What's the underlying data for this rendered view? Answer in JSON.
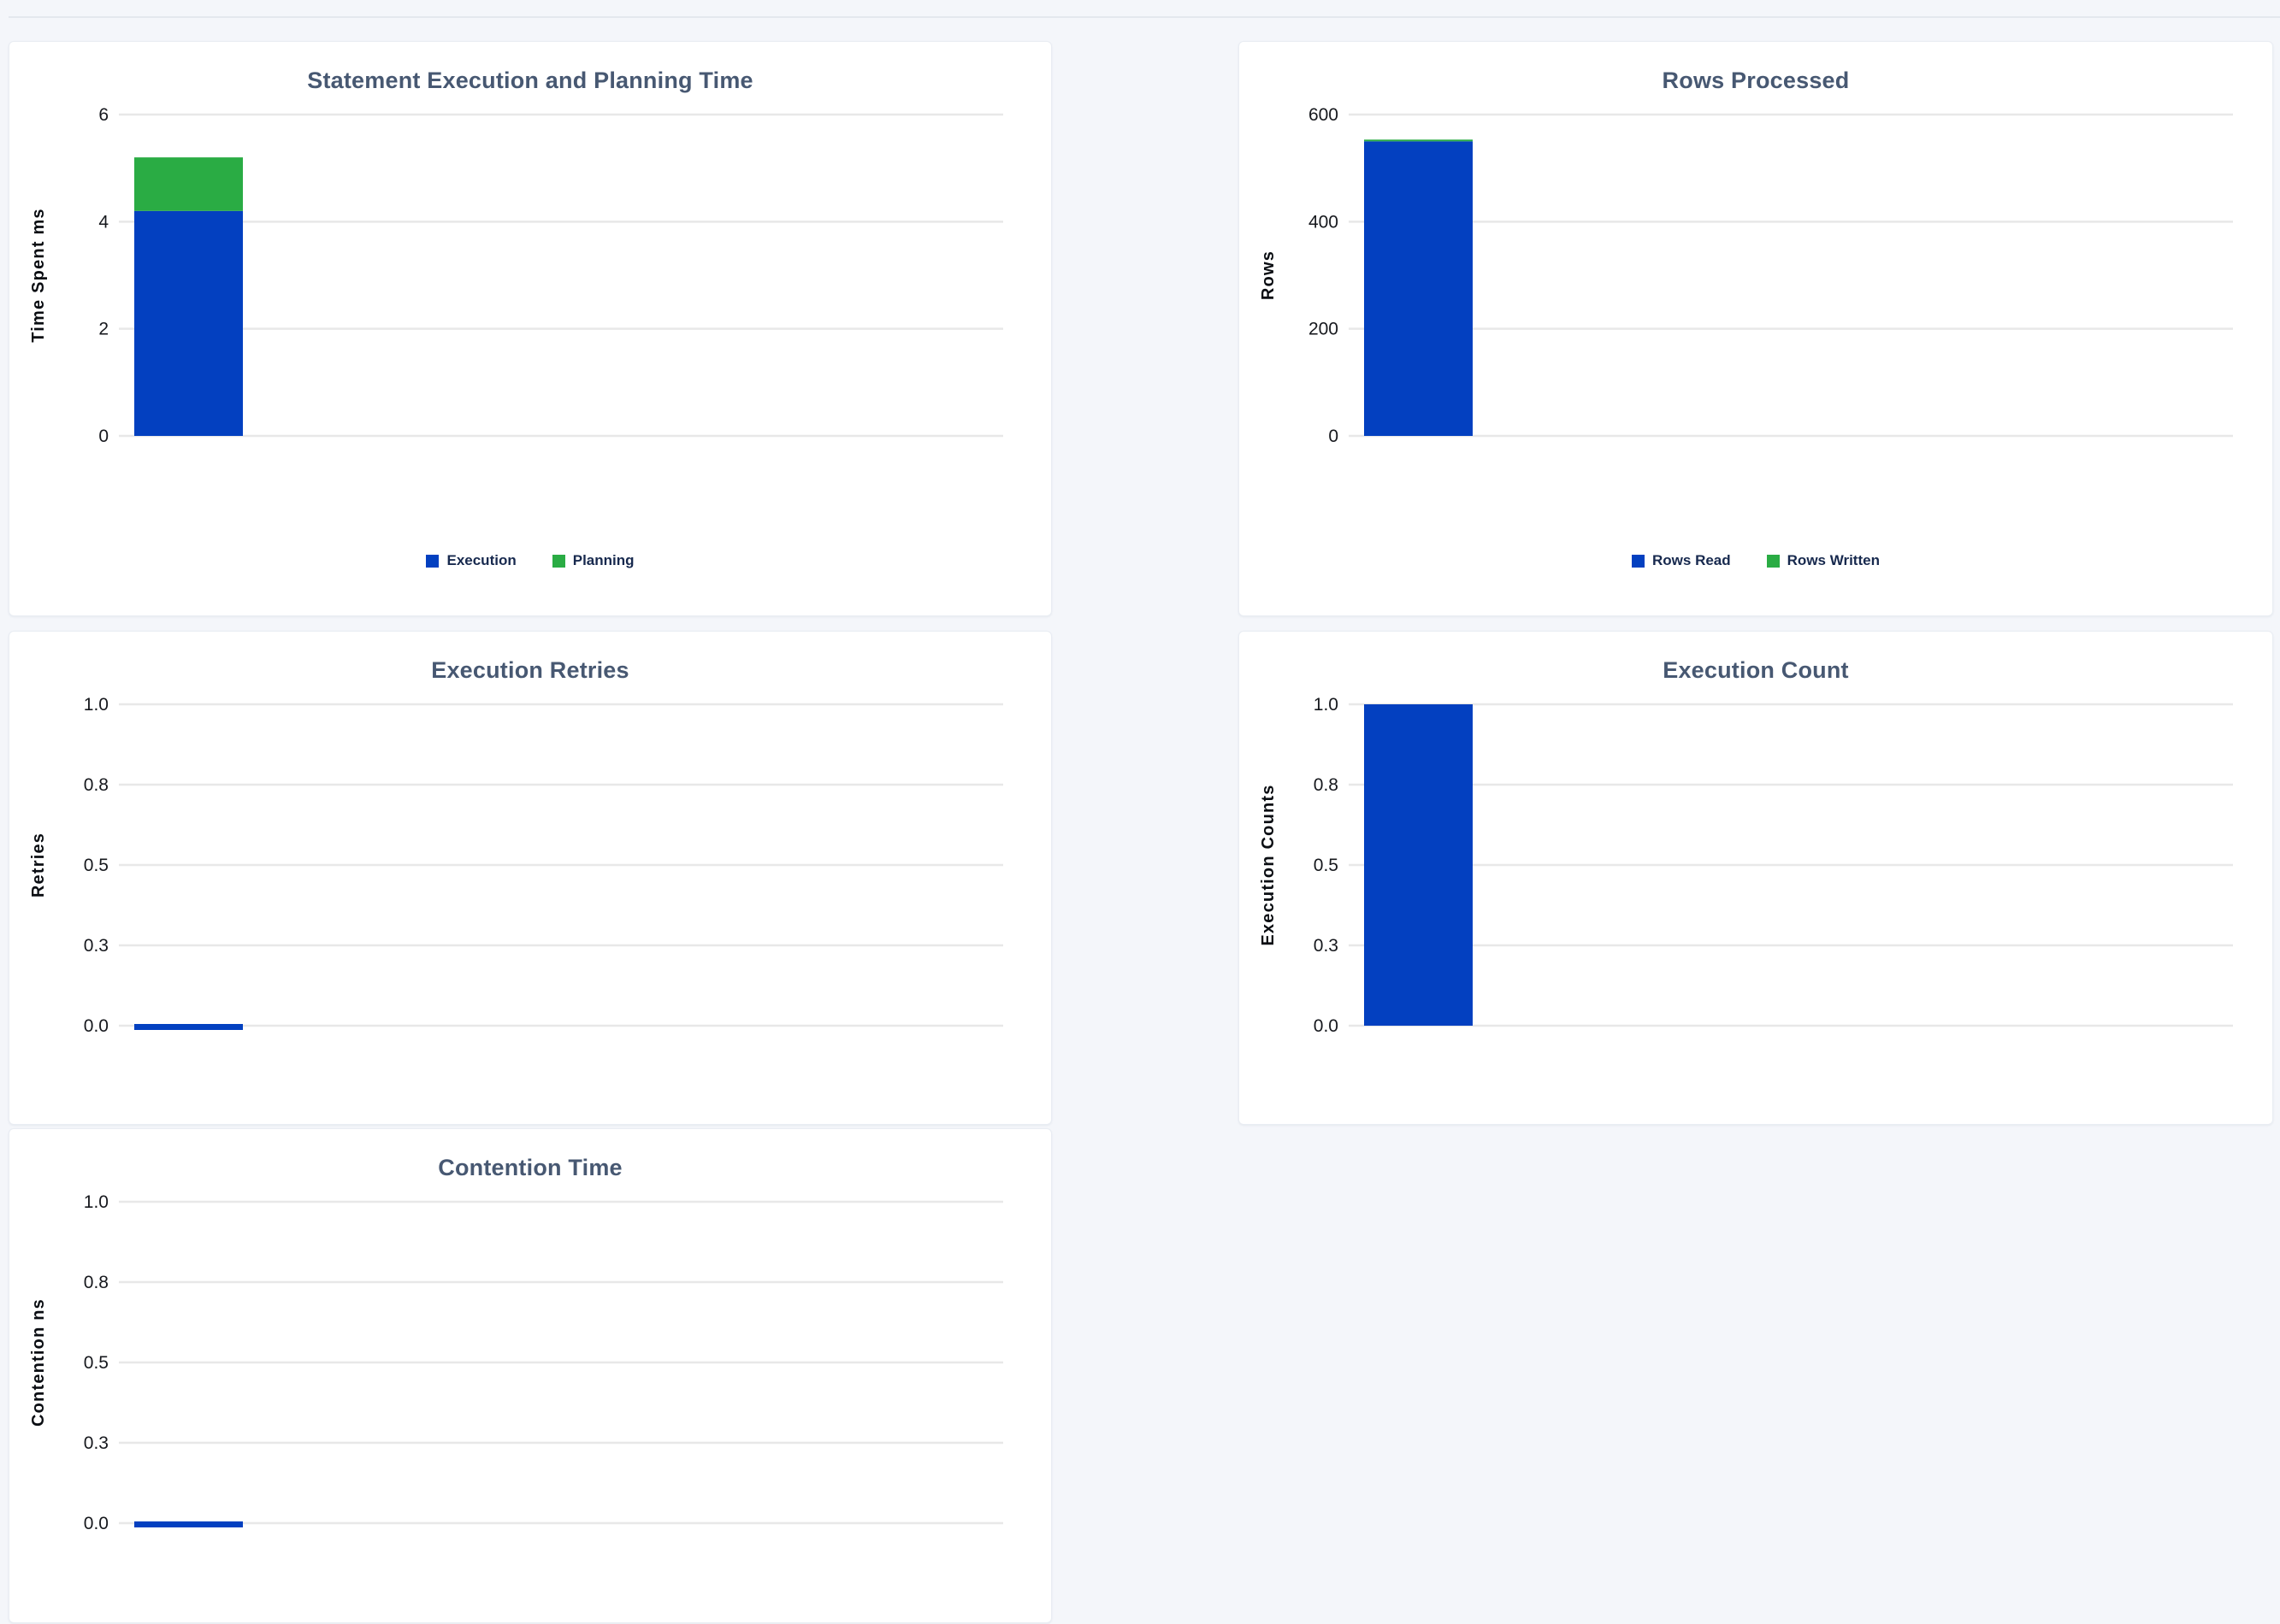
{
  "page": {
    "background": "#f4f6fa"
  },
  "colors": {
    "blue": "#0340c0",
    "green": "#2aac44",
    "title": "#475872",
    "tick": "#16181d",
    "grid": "#e8e8e8",
    "axis_label": "#0b0e13",
    "legend_text": "#17294e",
    "card_bg": "#ffffff",
    "card_border": "#e9edf3",
    "divider": "#e4e8ee"
  },
  "chart_data": [
    {
      "id": "statement-execution-planning-time",
      "type": "bar",
      "title": "Statement Execution and Planning Time",
      "ylabel": "Time Spent ms",
      "ylim": [
        0,
        6
      ],
      "yticks": [
        0,
        2,
        4,
        6
      ],
      "ytick_labels": [
        "0",
        "2",
        "4",
        "6"
      ],
      "grid": true,
      "legend_position": "bottom-center",
      "series": [
        {
          "name": "Execution",
          "color": "blue",
          "value": 4.2
        },
        {
          "name": "Planning",
          "color": "green",
          "value": 1.0
        }
      ],
      "legend": [
        {
          "label": "Execution",
          "color": "blue"
        },
        {
          "label": "Planning",
          "color": "green"
        }
      ]
    },
    {
      "id": "rows-processed",
      "type": "bar",
      "title": "Rows Processed",
      "ylabel": "Rows",
      "ylim": [
        0,
        600
      ],
      "yticks": [
        0,
        200,
        400,
        600
      ],
      "ytick_labels": [
        "0",
        "200",
        "400",
        "600"
      ],
      "grid": true,
      "legend_position": "bottom-center",
      "series": [
        {
          "name": "Rows Read",
          "color": "blue",
          "value": 550
        },
        {
          "name": "Rows Written",
          "color": "green",
          "value": 0
        }
      ],
      "legend": [
        {
          "label": "Rows Read",
          "color": "blue"
        },
        {
          "label": "Rows Written",
          "color": "green"
        }
      ]
    },
    {
      "id": "execution-retries",
      "type": "bar",
      "title": "Execution Retries",
      "ylabel": "Retries",
      "ylim": [
        0,
        1
      ],
      "yticks": [
        0,
        0.25,
        0.5,
        0.75,
        1
      ],
      "ytick_labels": [
        "0.0",
        "0.3",
        "0.5",
        "0.8",
        "1.0"
      ],
      "grid": true,
      "series": [
        {
          "color": "blue",
          "value": 0
        }
      ]
    },
    {
      "id": "execution-count",
      "type": "bar",
      "title": "Execution Count",
      "ylabel": "Execution Counts",
      "ylim": [
        0,
        1
      ],
      "yticks": [
        0,
        0.25,
        0.5,
        0.75,
        1
      ],
      "ytick_labels": [
        "0.0",
        "0.3",
        "0.5",
        "0.8",
        "1.0"
      ],
      "grid": true,
      "series": [
        {
          "color": "blue",
          "value": 1
        }
      ]
    },
    {
      "id": "contention-time",
      "type": "bar",
      "title": "Contention Time",
      "ylabel": "Contention ns",
      "ylim": [
        0,
        1
      ],
      "yticks": [
        0,
        0.25,
        0.5,
        0.75,
        1
      ],
      "ytick_labels": [
        "0.0",
        "0.3",
        "0.5",
        "0.8",
        "1.0"
      ],
      "grid": true,
      "series": [
        {
          "color": "blue",
          "value": 0
        }
      ]
    }
  ]
}
